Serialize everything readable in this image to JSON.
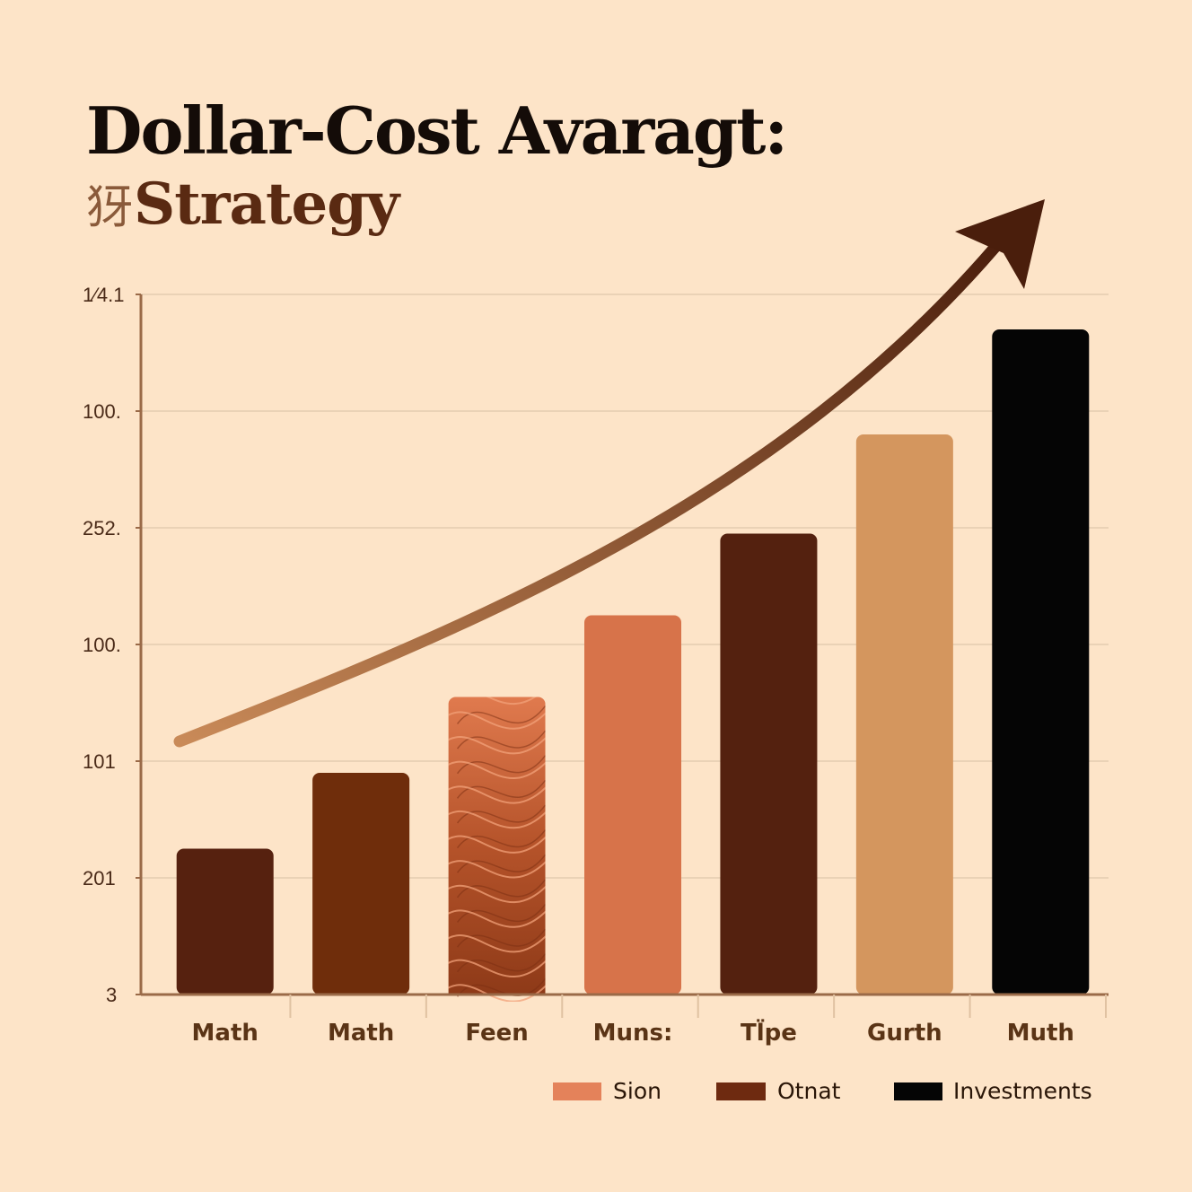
{
  "title": {
    "line1": "Dollar-Cost Avaragt:",
    "line2_glyph": "犽",
    "line2_text": "Strategy"
  },
  "chart_data": {
    "type": "bar",
    "title": "Dollar-Cost Avaragt: 犽Strategy",
    "xlabel": "",
    "ylabel": "",
    "y_tick_labels": [
      "3",
      "201",
      "101",
      "100.",
      "252.",
      "100.",
      "1⁄4.1"
    ],
    "categories": [
      "Math",
      "Math",
      "Feen",
      "Muns:",
      "Tl̈pe",
      "Gurth",
      "Muth"
    ],
    "values": [
      1.25,
      1.9,
      2.55,
      3.25,
      3.95,
      4.8,
      5.7
    ],
    "value_units": "y-axis gridline steps (labels printed on axis are illegible)",
    "ylim": [
      0,
      6
    ],
    "grid": true,
    "bar_colors": [
      "#56210f",
      "#6f2d0b",
      "#b8542a",
      "#d7734a",
      "#54210f",
      "#d4965e",
      "#050505"
    ],
    "patterned_bar_index": 2,
    "trend_arrow": true,
    "legend_position": "bottom-right",
    "legend": [
      {
        "label": "Sion",
        "color": "#e4825a"
      },
      {
        "label": "Otnat",
        "color": "#6e2a10"
      },
      {
        "label": "Investments",
        "color": "#050505"
      }
    ]
  },
  "colors": {
    "background": "#fde4c8",
    "grid": "#ead2b6",
    "axis": "#9a6a48",
    "arrow_start": "#c98a58",
    "arrow_end": "#4a1e0c"
  }
}
